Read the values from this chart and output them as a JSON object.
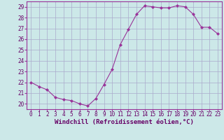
{
  "x": [
    0,
    1,
    2,
    3,
    4,
    5,
    6,
    7,
    8,
    9,
    10,
    11,
    12,
    13,
    14,
    15,
    16,
    17,
    18,
    19,
    20,
    21,
    22,
    23
  ],
  "y": [
    22.0,
    21.6,
    21.3,
    20.6,
    20.4,
    20.3,
    20.0,
    19.8,
    20.5,
    21.8,
    23.2,
    25.5,
    26.9,
    28.3,
    29.1,
    29.0,
    28.9,
    28.9,
    29.1,
    29.0,
    28.3,
    27.1,
    27.1,
    26.5
  ],
  "line_color": "#993399",
  "marker": "D",
  "marker_size": 2.0,
  "bg_color": "#cce8e8",
  "grid_color": "#aaaacc",
  "xlabel": "Windchill (Refroidissement éolien,°C)",
  "ylim": [
    19.5,
    29.5
  ],
  "xlim": [
    -0.5,
    23.5
  ],
  "yticks": [
    20,
    21,
    22,
    23,
    24,
    25,
    26,
    27,
    28,
    29
  ],
  "xticks": [
    0,
    1,
    2,
    3,
    4,
    5,
    6,
    7,
    8,
    9,
    10,
    11,
    12,
    13,
    14,
    15,
    16,
    17,
    18,
    19,
    20,
    21,
    22,
    23
  ],
  "tick_fontsize": 5.5,
  "xlabel_fontsize": 6.5,
  "spine_color": "#993399",
  "line_width": 0.8
}
